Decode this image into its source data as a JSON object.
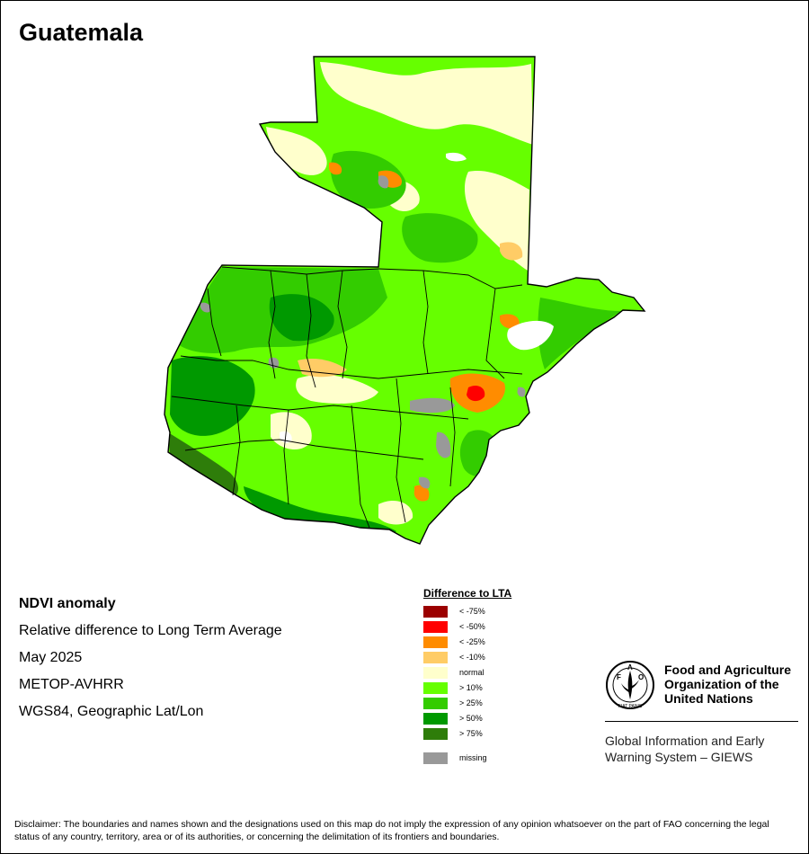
{
  "title": "Guatemala",
  "info": {
    "heading": "NDVI anomaly",
    "subtitle": "Relative difference to Long Term Average",
    "date": "May 2025",
    "sensor": "METOP-AVHRR",
    "projection": "WGS84, Geographic Lat/Lon"
  },
  "legend": {
    "title": "Difference to LTA",
    "items": [
      {
        "label": "< -75%",
        "color": "#9b0000"
      },
      {
        "label": "< -50%",
        "color": "#ff0000"
      },
      {
        "label": "< -25%",
        "color": "#ff8c00"
      },
      {
        "label": "< -10%",
        "color": "#ffcc66"
      },
      {
        "label": "normal",
        "color": "#ffffcc"
      },
      {
        "label": "> 10%",
        "color": "#66ff00"
      },
      {
        "label": "> 25%",
        "color": "#33cc00"
      },
      {
        "label": "> 50%",
        "color": "#009900"
      },
      {
        "label": "> 75%",
        "color": "#2e7d0a"
      }
    ],
    "missing": {
      "label": "missing",
      "color": "#999999"
    }
  },
  "organization": {
    "name_lines": [
      "Food and Agriculture",
      "Organization of the",
      "United Nations"
    ],
    "logo_letters": "FAO",
    "logo_motto": "FIAT PANIS",
    "system_lines": [
      "Global Information and Early",
      "Warning System – GIEWS"
    ]
  },
  "disclaimer": "Disclaimer: The boundaries and names shown and the designations used on this map do not imply the expression of any opinion whatsoever on the part of FAO concerning the legal status of any country, territory, area or of its authorities, or concerning the delimitation of its frontiers and boundaries."
}
